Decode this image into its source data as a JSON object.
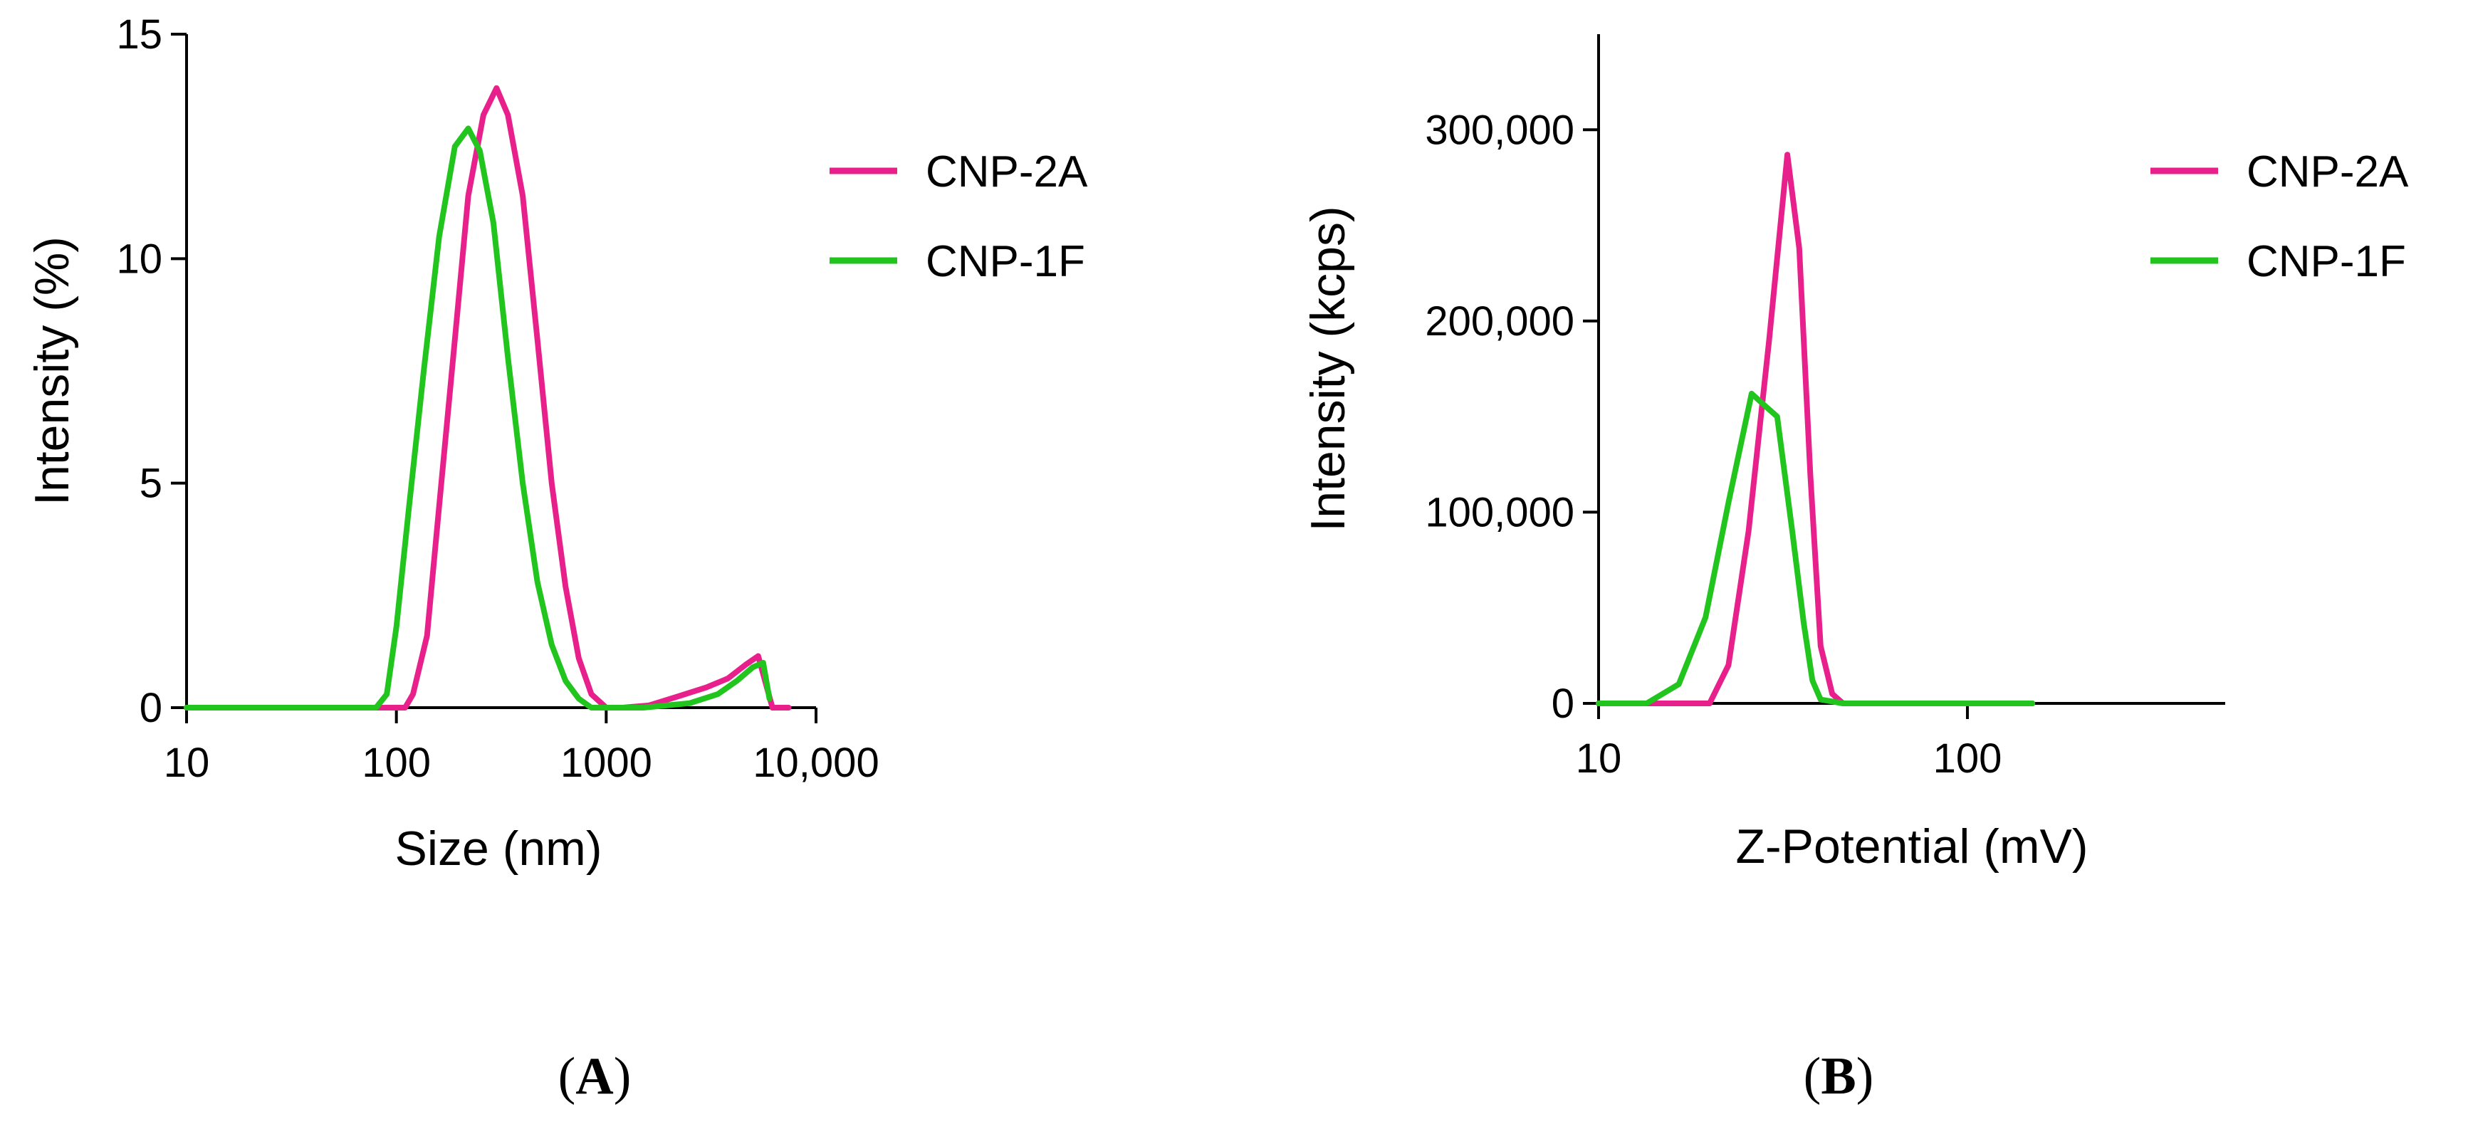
{
  "figure": {
    "colors": {
      "cnp2a": "#e8208c",
      "cnp1f": "#22c41e",
      "axis": "#000000"
    }
  },
  "chart_data": [
    {
      "type": "line",
      "panel_label": "A",
      "title": "",
      "xlabel": "Size (nm)",
      "ylabel": "Intensity (%)",
      "xscale": "log",
      "xlim": [
        10,
        10000
      ],
      "ylim": [
        0,
        15
      ],
      "xticks": [
        10,
        100,
        1000,
        10000
      ],
      "xtick_labels": [
        "10",
        "100",
        "1000",
        "10,000"
      ],
      "yticks": [
        0,
        5,
        10,
        15
      ],
      "ytick_labels": [
        "0",
        "5",
        "10",
        "15"
      ],
      "legend": {
        "placement": "right",
        "entries": [
          "CNP-2A",
          "CNP-1F"
        ]
      },
      "series": [
        {
          "name": "CNP-2A",
          "color": "#e8208c",
          "x": [
            10,
            110,
            120,
            140,
            160,
            190,
            220,
            260,
            300,
            340,
            400,
            470,
            550,
            640,
            740,
            850,
            1000,
            1200,
            1600,
            2200,
            3000,
            3800,
            4600,
            5300,
            6200,
            7400
          ],
          "y": [
            0,
            0,
            0.3,
            1.6,
            4.5,
            8.2,
            11.4,
            13.2,
            13.8,
            13.2,
            11.4,
            8.2,
            5.0,
            2.7,
            1.1,
            0.3,
            0,
            0,
            0.05,
            0.25,
            0.45,
            0.65,
            0.95,
            1.15,
            0,
            0
          ]
        },
        {
          "name": "CNP-1F",
          "color": "#22c41e",
          "x": [
            10,
            80,
            90,
            100,
            115,
            135,
            160,
            190,
            220,
            250,
            290,
            340,
            400,
            470,
            550,
            640,
            740,
            850,
            1000,
            1500,
            2500,
            3400,
            4200,
            5000,
            5600,
            6000
          ],
          "y": [
            0,
            0,
            0.3,
            1.8,
            4.5,
            7.5,
            10.5,
            12.5,
            12.9,
            12.4,
            10.8,
            7.8,
            5.0,
            2.8,
            1.4,
            0.6,
            0.2,
            0,
            0,
            0,
            0.1,
            0.3,
            0.6,
            0.9,
            1.0,
            0.2
          ]
        }
      ]
    },
    {
      "type": "line",
      "panel_label": "B",
      "title": "",
      "xlabel": "Z-Potential (mV)",
      "ylabel": "Intensity (kcps)",
      "xscale": "log",
      "xlim": [
        10,
        500
      ],
      "ylim": [
        0,
        350000
      ],
      "xticks": [
        10,
        100
      ],
      "xtick_labels": [
        "10",
        "100"
      ],
      "yticks": [
        0,
        100000,
        200000,
        300000
      ],
      "ytick_labels": [
        "0",
        "100,000",
        "200,000",
        "300,000"
      ],
      "legend": {
        "placement": "top-right",
        "entries": [
          "CNP-2A",
          "CNP-1F"
        ]
      },
      "series": [
        {
          "name": "CNP-2A",
          "color": "#e8208c",
          "x": [
            10,
            20,
            22.5,
            25.5,
            29,
            32.5,
            35,
            37.5,
            40,
            43,
            46,
            50,
            150
          ],
          "y": [
            0,
            0,
            20000,
            90000,
            190000,
            287000,
            238000,
            120000,
            30000,
            5000,
            0,
            0,
            0
          ]
        },
        {
          "name": "CNP-1F",
          "color": "#22c41e",
          "x": [
            10,
            13.5,
            16.5,
            19.5,
            22.5,
            26,
            28.5,
            30.5,
            33.5,
            36,
            38,
            40,
            46,
            60,
            150
          ],
          "y": [
            0,
            0,
            10000,
            45000,
            105000,
            162000,
            155000,
            150000,
            90000,
            42000,
            12000,
            2000,
            0,
            0,
            0
          ]
        }
      ]
    }
  ]
}
